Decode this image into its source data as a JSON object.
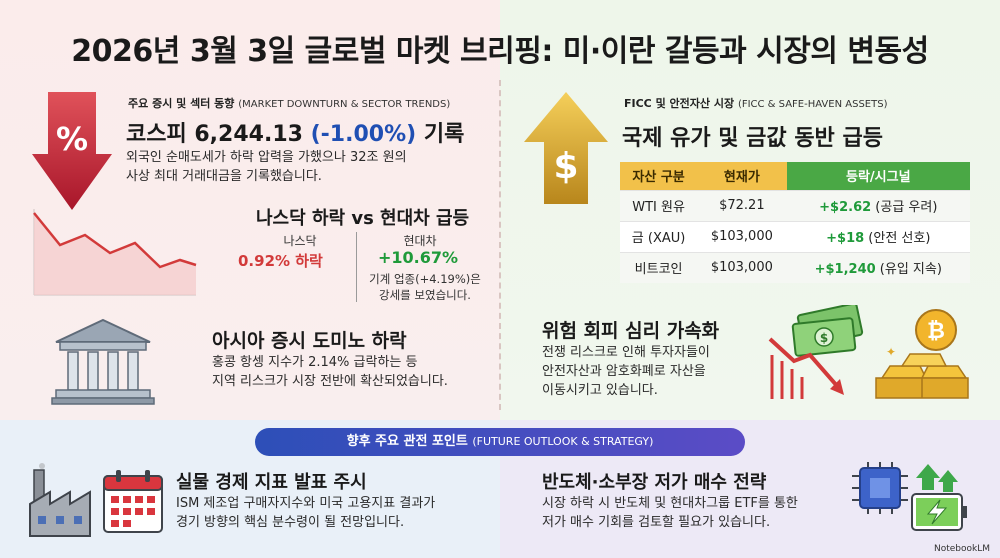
{
  "title": "2026년 3월 3일 글로벌 마켓 브리핑: 미·이란 갈등과 시장의 변동성",
  "left": {
    "section_label": "주요 증시 및 섹터 동향",
    "section_label_en": "(MARKET DOWNTURN & SECTOR TRENDS)",
    "kospi_prefix": "코스피 6,244.13 ",
    "kospi_change": "(-1.00%)",
    "kospi_suffix": " 기록",
    "kospi_desc_1": "외국인 순매도세가 하락 압력을 가했으나 32조 원의",
    "kospi_desc_2": "사상 최대 거래대금을 기록했습니다.",
    "vs_title": "나스닥 하락 vs 현대차 급등",
    "nasdaq_label": "나스닥",
    "nasdaq_value": "0.92% 하락",
    "hyundai_label": "현대차",
    "hyundai_value": "+10.67%",
    "hyundai_note_1": "기계 업종(+4.19%)은",
    "hyundai_note_2": "강세를 보였습니다.",
    "asia_title": "아시아 증시 도미노 하락",
    "asia_desc_1": "홍콩 항셍 지수가 2.14% 급락하는 등",
    "asia_desc_2": "지역 리스크가 시장 전반에 확산되었습니다."
  },
  "right": {
    "section_label": "FICC 및 안전자산 시장",
    "section_label_en": "(FICC & SAFE-HAVEN ASSETS)",
    "oil_gold_title": "국제 유가 및 금값 동반 급등",
    "table": {
      "headers": [
        "자산 구분",
        "현재가",
        "등락/시그널"
      ],
      "rows": [
        {
          "asset": "WTI 원유",
          "price": "$72.21",
          "change": "+$2.62",
          "signal": " (공급 우려)"
        },
        {
          "asset": "금 (XAU)",
          "price": "$103,000",
          "change": "+$18",
          "signal": " (안전 선호)"
        },
        {
          "asset": "비트코인",
          "price": "$103,000",
          "change": "+$1,240",
          "signal": " (유입 지속)"
        }
      ]
    },
    "risk_title": "위험 회피 심리 가속화",
    "risk_desc_1": "전쟁 리스크로 인해 투자자들이",
    "risk_desc_2": "안전자산과 암호화폐로 자산을",
    "risk_desc_3": "이동시키고 있습니다."
  },
  "outlook": {
    "pill_label": "향후 주요 관전 포인트",
    "pill_label_en": "(FUTURE OUTLOOK & STRATEGY)",
    "ism_title": "실물 경제 지표 발표 주시",
    "ism_desc_1": "ISM 제조업 구매자지수와 미국 고용지표 결과가",
    "ism_desc_2": "경기 방향의 핵심 분수령이 될 전망입니다.",
    "semi_title": "반도체·소부장 저가 매수 전략",
    "semi_desc_1": "시장 하락 시 반도체 및 현대차그룹 ETF를 통한",
    "semi_desc_2": "저가 매수 기회를 검토할 필요가 있습니다."
  },
  "watermark": "NotebookLM",
  "colors": {
    "red": "#d23a3a",
    "green": "#1f9a3a",
    "blue": "#1f4fb3",
    "gold": "#f2c14a"
  }
}
